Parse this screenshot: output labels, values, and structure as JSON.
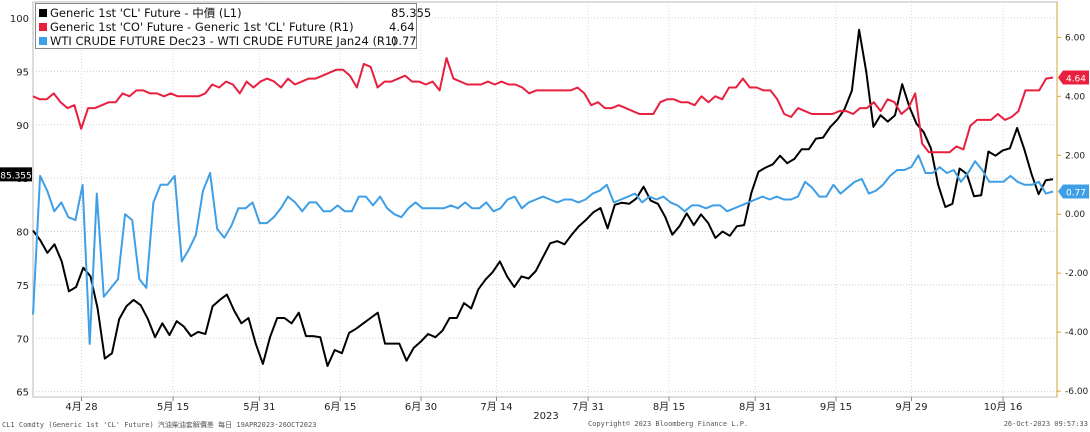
{
  "chart_data": {
    "type": "line",
    "x_axis": {
      "ticks": [
        "4月 28",
        "5月 15",
        "5月 31",
        "6月 15",
        "6月 30",
        "7月 14",
        "7月 31",
        "8月 15",
        "8月 31",
        "9月 15",
        "9月 29",
        "10月 16"
      ],
      "year_label": "2023",
      "range": [
        "2023-04-19",
        "2023-10-26"
      ]
    },
    "y_left": {
      "ticks": [
        65,
        70,
        75,
        80,
        85,
        90,
        95,
        100
      ],
      "range": [
        64.5,
        101.5
      ]
    },
    "y_right": {
      "ticks": [
        "-6.00",
        "-4.00",
        "-2.00",
        "0.00",
        "2.00",
        "4.00",
        "6.00"
      ],
      "range": [
        -6.2,
        7.2
      ]
    },
    "last_labels": {
      "left": "85.355",
      "red": "4.64",
      "blue": "0.77"
    },
    "colors": {
      "black": "#000000",
      "red": "#e8203f",
      "blue": "#3f9fe6",
      "right_axis": "#d4a72c"
    },
    "series": [
      {
        "name": "Generic 1st 'CL' Future - 中價 (L1)",
        "axis": "left",
        "color": "#000000",
        "values": [
          80.1,
          79.2,
          78.0,
          78.8,
          77.2,
          74.4,
          74.8,
          76.6,
          75.8,
          72.8,
          68.1,
          68.6,
          71.8,
          73.0,
          73.6,
          73.1,
          71.8,
          70.1,
          71.4,
          70.3,
          71.6,
          71.1,
          70.2,
          70.6,
          70.4,
          73.0,
          73.6,
          74.1,
          72.6,
          71.4,
          71.9,
          69.5,
          67.6,
          70.1,
          71.9,
          71.9,
          71.4,
          72.4,
          70.2,
          70.2,
          70.1,
          67.4,
          68.9,
          68.6,
          70.5,
          70.9,
          71.4,
          71.9,
          72.4,
          69.5,
          69.5,
          69.5,
          67.9,
          69.1,
          69.7,
          70.4,
          70.1,
          70.7,
          71.9,
          71.9,
          73.3,
          72.8,
          74.6,
          75.5,
          76.2,
          77.2,
          75.8,
          74.8,
          75.8,
          75.6,
          76.3,
          77.6,
          78.9,
          79.1,
          78.8,
          79.7,
          80.5,
          81.1,
          81.8,
          82.2,
          80.3,
          82.5,
          82.7,
          82.6,
          83.1,
          84.2,
          82.9,
          82.6,
          81.4,
          79.7,
          80.5,
          81.7,
          80.6,
          81.6,
          80.8,
          79.4,
          80.0,
          79.6,
          80.5,
          80.6,
          83.6,
          85.6,
          86.0,
          86.3,
          87.1,
          86.4,
          86.8,
          87.7,
          87.7,
          88.7,
          88.8,
          89.8,
          90.5,
          91.5,
          93.2,
          98.9,
          95.0,
          89.8,
          90.9,
          90.3,
          90.9,
          93.8,
          91.7,
          90.1,
          89.3,
          87.8,
          84.4,
          82.3,
          82.6,
          85.9,
          85.4,
          83.3,
          83.4,
          87.5,
          87.1,
          87.6,
          87.8,
          89.7,
          87.7,
          85.4,
          83.5,
          84.8,
          84.9
        ],
        "last_value": 85.355
      },
      {
        "name": "Generic 1st 'CO' Future - Generic 1st 'CL' Future (R1)",
        "axis": "right",
        "color": "#e8203f",
        "values": [
          4.0,
          3.9,
          3.9,
          4.1,
          3.8,
          3.6,
          3.7,
          2.9,
          3.6,
          3.6,
          3.7,
          3.8,
          3.8,
          4.1,
          4.0,
          4.2,
          4.2,
          4.1,
          4.1,
          4.0,
          4.1,
          4.0,
          4.0,
          4.0,
          4.0,
          4.1,
          4.4,
          4.3,
          4.5,
          4.4,
          4.1,
          4.5,
          4.3,
          4.5,
          4.6,
          4.5,
          4.3,
          4.6,
          4.4,
          4.5,
          4.6,
          4.6,
          4.7,
          4.8,
          4.9,
          4.9,
          4.7,
          4.3,
          5.1,
          5.0,
          4.3,
          4.5,
          4.5,
          4.6,
          4.7,
          4.5,
          4.5,
          4.4,
          4.5,
          4.2,
          5.3,
          4.6,
          4.5,
          4.4,
          4.4,
          4.4,
          4.5,
          4.4,
          4.5,
          4.4,
          4.4,
          4.3,
          4.1,
          4.2,
          4.2,
          4.2,
          4.2,
          4.2,
          4.2,
          4.3,
          4.1,
          3.7,
          3.8,
          3.6,
          3.6,
          3.7,
          3.6,
          3.5,
          3.4,
          3.4,
          3.4,
          3.8,
          3.9,
          3.9,
          3.8,
          3.8,
          3.7,
          4.0,
          3.8,
          4.0,
          3.9,
          4.3,
          4.3,
          4.6,
          4.3,
          4.3,
          4.2,
          4.2,
          3.9,
          3.4,
          3.3,
          3.6,
          3.5,
          3.4,
          3.4,
          3.4,
          3.4,
          3.5,
          3.5,
          3.4,
          3.6,
          3.6,
          3.8,
          3.5,
          3.9,
          3.8,
          3.4,
          3.6,
          4.1,
          2.4,
          2.1,
          2.1,
          2.1,
          2.1,
          2.3,
          2.2,
          3.0,
          3.2,
          3.2,
          3.2,
          3.4,
          3.2,
          3.3,
          3.5,
          4.2,
          4.2,
          4.2,
          4.6,
          4.64
        ],
        "last_value": 4.64
      },
      {
        "name": "WTI CRUDE FUTURE Dec23 - WTI CRUDE FUTURE Jan24 (R1)",
        "axis": "right",
        "color": "#3f9fe6",
        "values": [
          -3.4,
          1.3,
          0.8,
          0.1,
          0.4,
          -0.1,
          -0.2,
          1.0,
          -4.4,
          0.7,
          -2.8,
          -2.5,
          -2.2,
          0.0,
          -0.2,
          -2.2,
          -2.5,
          0.4,
          1.0,
          1.0,
          1.3,
          -1.6,
          -1.2,
          -0.7,
          0.8,
          1.4,
          -0.5,
          -0.8,
          -0.4,
          0.2,
          0.2,
          0.4,
          -0.3,
          -0.3,
          -0.1,
          0.2,
          0.6,
          0.4,
          0.1,
          0.4,
          0.4,
          0.1,
          0.1,
          0.3,
          0.1,
          0.1,
          0.6,
          0.6,
          0.3,
          0.6,
          0.2,
          0.0,
          -0.1,
          0.2,
          0.4,
          0.2,
          0.2,
          0.2,
          0.2,
          0.3,
          0.2,
          0.4,
          0.2,
          0.2,
          0.4,
          0.1,
          0.2,
          0.5,
          0.6,
          0.2,
          0.4,
          0.5,
          0.6,
          0.5,
          0.4,
          0.5,
          0.5,
          0.4,
          0.5,
          0.7,
          0.8,
          1.0,
          0.4,
          0.5,
          0.6,
          0.7,
          0.4,
          0.6,
          0.5,
          0.6,
          0.4,
          0.3,
          0.1,
          0.3,
          0.3,
          0.2,
          0.3,
          0.3,
          0.1,
          0.2,
          0.3,
          0.4,
          0.5,
          0.6,
          0.5,
          0.6,
          0.5,
          0.5,
          0.6,
          1.1,
          0.9,
          0.6,
          0.6,
          1.0,
          0.7,
          0.9,
          1.1,
          1.2,
          0.7,
          0.8,
          1.0,
          1.3,
          1.5,
          1.5,
          1.6,
          2.0,
          1.4,
          1.4,
          1.6,
          1.4,
          1.5,
          1.1,
          1.4,
          1.8,
          1.5,
          1.1,
          1.1,
          1.1,
          1.3,
          1.1,
          1.0,
          1.0,
          1.1,
          0.7,
          0.77
        ],
        "last_value": 0.77
      }
    ],
    "legend": [
      {
        "label": "Generic 1st 'CL' Future - 中價 (L1)",
        "value": "85.355",
        "color": "#000000"
      },
      {
        "label": "Generic 1st 'CO' Future - Generic 1st 'CL' Future (R1)",
        "value": "4.64",
        "color": "#e8203f"
      },
      {
        "label": "WTI CRUDE FUTURE Dec23 - WTI CRUDE FUTURE Jan24 (R1)",
        "value": "0.77",
        "color": "#3f9fe6"
      }
    ]
  },
  "footer": {
    "left": "CL1 Comdty (Generic 1st 'CL' Future) 汽油柴油套解價差  每日 19APR2023-26OCT2023",
    "center": "Copyright© 2023 Bloomberg Finance L.P.",
    "right": "26-Oct-2023 09:57:33"
  }
}
